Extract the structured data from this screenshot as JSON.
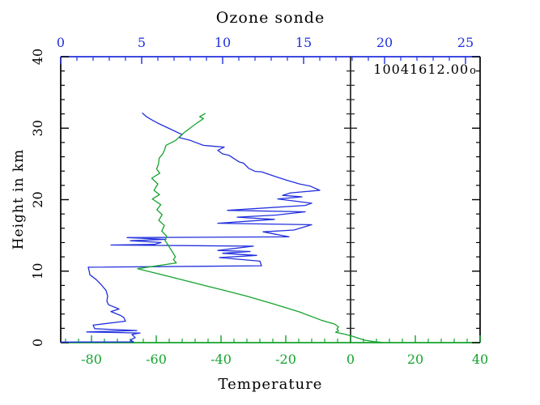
{
  "header": {
    "title": "Ozone sonde"
  },
  "annotations": {
    "station_id": "10041612.00",
    "marker": "o"
  },
  "axis_labels": {
    "bottom": "Temperature",
    "left": "Height in km"
  },
  "colors": {
    "ozone": "#2230dd",
    "temperature": "#15a32e",
    "frame": "#000000",
    "reference": "#222222"
  },
  "chart_data": {
    "type": "line",
    "title": "Ozone sonde",
    "top_axis": {
      "label": "Ozone sonde",
      "color": "#2230dd",
      "min": 0,
      "max": 25.9,
      "major_ticks": [
        0,
        5,
        10,
        15,
        20,
        25
      ],
      "minor_step": 1
    },
    "bottom_axis": {
      "label": "Temperature",
      "color": "#15a32e",
      "min": -89.5,
      "max": 40,
      "major_ticks": [
        -80,
        -60,
        -40,
        -20,
        0,
        20,
        40
      ],
      "minor_step": 4
    },
    "y_axis": {
      "label": "Height in km",
      "min": 0,
      "max": 40,
      "major_ticks": [
        0,
        10,
        20,
        30,
        40
      ],
      "minor_step": 2
    },
    "reference_line": {
      "axis": "bottom",
      "value": 0,
      "color": "#222222"
    },
    "grid": false,
    "series": [
      {
        "name": "ozone",
        "axis": "top",
        "color": "#2230dd",
        "points": [
          [
            5.05,
            32.1
          ],
          [
            5.3,
            31.6
          ],
          [
            5.6,
            31.2
          ],
          [
            6.0,
            30.7
          ],
          [
            6.75,
            29.9
          ],
          [
            7.5,
            29.1
          ],
          [
            7.3,
            28.7
          ],
          [
            8.0,
            28.3
          ],
          [
            8.8,
            27.6
          ],
          [
            9.6,
            27.45
          ],
          [
            10.1,
            27.35
          ],
          [
            9.7,
            26.9
          ],
          [
            10.0,
            26.4
          ],
          [
            10.4,
            26.2
          ],
          [
            11.0,
            25.3
          ],
          [
            11.3,
            25.1
          ],
          [
            11.6,
            24.4
          ],
          [
            12.0,
            23.95
          ],
          [
            12.4,
            23.9
          ],
          [
            13.3,
            23.2
          ],
          [
            14.0,
            22.7
          ],
          [
            14.75,
            22.2
          ],
          [
            15.4,
            21.9
          ],
          [
            16.0,
            21.3
          ],
          [
            14.2,
            20.95
          ],
          [
            13.7,
            20.6
          ],
          [
            14.9,
            20.4
          ],
          [
            13.4,
            20.1
          ],
          [
            14.1,
            19.9
          ],
          [
            15.5,
            19.5
          ],
          [
            15.1,
            19.2
          ],
          [
            10.3,
            18.5
          ],
          [
            15.1,
            18.3
          ],
          [
            13.3,
            17.85
          ],
          [
            10.9,
            17.55
          ],
          [
            13.2,
            17.25
          ],
          [
            9.7,
            16.7
          ],
          [
            15.5,
            16.5
          ],
          [
            14.4,
            15.75
          ],
          [
            12.5,
            15.5
          ],
          [
            14.1,
            14.8
          ],
          [
            4.1,
            14.7
          ],
          [
            6.5,
            14.45
          ],
          [
            4.3,
            14.25
          ],
          [
            6.2,
            14.0
          ],
          [
            5.8,
            13.75
          ],
          [
            3.1,
            13.65
          ],
          [
            11.9,
            13.5
          ],
          [
            9.7,
            12.9
          ],
          [
            11.7,
            12.75
          ],
          [
            10.0,
            12.5
          ],
          [
            12.1,
            12.2
          ],
          [
            9.8,
            11.9
          ],
          [
            12.3,
            11.4
          ],
          [
            12.4,
            10.75
          ],
          [
            1.7,
            10.55
          ],
          [
            1.75,
            10.1
          ],
          [
            1.8,
            9.5
          ],
          [
            2.2,
            8.8
          ],
          [
            2.5,
            8.1
          ],
          [
            2.8,
            7.3
          ],
          [
            2.9,
            6.5
          ],
          [
            2.85,
            5.8
          ],
          [
            2.95,
            5.3
          ],
          [
            3.6,
            4.7
          ],
          [
            3.1,
            4.35
          ],
          [
            3.7,
            3.8
          ],
          [
            3.9,
            3.5
          ],
          [
            4.0,
            3.0
          ],
          [
            2.0,
            2.45
          ],
          [
            2.1,
            1.95
          ],
          [
            4.7,
            1.7
          ],
          [
            1.6,
            1.5
          ],
          [
            4.9,
            1.35
          ],
          [
            4.4,
            1.15
          ],
          [
            4.6,
            0.7
          ],
          [
            4.3,
            0.35
          ],
          [
            4.5,
            0.1
          ],
          [
            0.0,
            0.08
          ]
        ]
      },
      {
        "name": "temperature",
        "axis": "bottom",
        "color": "#15a32e",
        "points": [
          [
            -44.9,
            32.05
          ],
          [
            -46.6,
            31.6
          ],
          [
            -45.4,
            31.35
          ],
          [
            -47.5,
            30.7
          ],
          [
            -49.0,
            30.2
          ],
          [
            -51.6,
            29.3
          ],
          [
            -52.8,
            28.8
          ],
          [
            -54.0,
            28.3
          ],
          [
            -57.0,
            27.6
          ],
          [
            -57.4,
            27.0
          ],
          [
            -58.0,
            26.4
          ],
          [
            -59.1,
            25.8
          ],
          [
            -59.3,
            25.0
          ],
          [
            -59.9,
            24.3
          ],
          [
            -58.9,
            23.7
          ],
          [
            -61.4,
            23.0
          ],
          [
            -59.5,
            22.2
          ],
          [
            -60.7,
            21.3
          ],
          [
            -59.0,
            20.7
          ],
          [
            -61.2,
            20.1
          ],
          [
            -58.6,
            19.3
          ],
          [
            -59.8,
            18.6
          ],
          [
            -58.2,
            17.9
          ],
          [
            -59.2,
            17.1
          ],
          [
            -57.5,
            16.4
          ],
          [
            -58.3,
            15.6
          ],
          [
            -56.8,
            14.9
          ],
          [
            -57.3,
            14.3
          ],
          [
            -56.4,
            13.7
          ],
          [
            -55.3,
            12.9
          ],
          [
            -54.1,
            12.0
          ],
          [
            -54.7,
            11.6
          ],
          [
            -53.8,
            11.15
          ],
          [
            -65.75,
            10.35
          ],
          [
            -57.4,
            9.4
          ],
          [
            -49.1,
            8.45
          ],
          [
            -40.75,
            7.5
          ],
          [
            -32.4,
            6.55
          ],
          [
            -24.1,
            5.45
          ],
          [
            -15.75,
            4.3
          ],
          [
            -9.1,
            3.15
          ],
          [
            -4.9,
            2.6
          ],
          [
            -3.7,
            2.2
          ],
          [
            -4.2,
            1.9
          ],
          [
            -3.7,
            1.65
          ],
          [
            -4.6,
            1.45
          ],
          [
            -2.0,
            1.2
          ],
          [
            0.6,
            0.9
          ],
          [
            4.25,
            0.35
          ],
          [
            7.0,
            0.15
          ],
          [
            9.7,
            0.04
          ]
        ]
      }
    ]
  }
}
